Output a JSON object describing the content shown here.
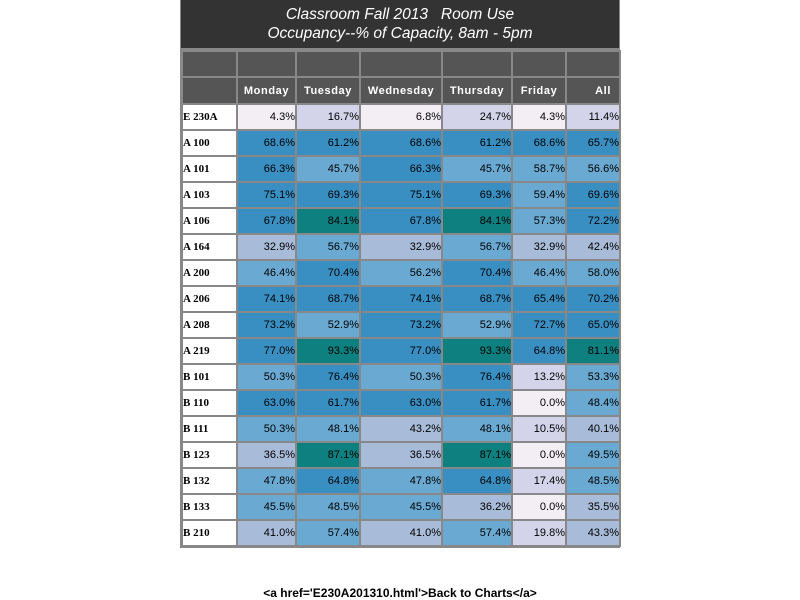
{
  "chart_data": {
    "type": "table",
    "title": "Classroom Fall 2013   Room Use",
    "subtitle": "Occupancy--% of Capacity, 8am - 5pm",
    "columns": [
      "Monday",
      "Tuesday",
      "Wednesday",
      "Thursday",
      "Friday",
      "All"
    ],
    "rows": [
      {
        "label": "E 230A",
        "values": [
          "4.3%",
          "16.7%",
          "6.8%",
          "24.7%",
          "4.3%",
          "11.4%"
        ]
      },
      {
        "label": "A 100",
        "values": [
          "68.6%",
          "61.2%",
          "68.6%",
          "61.2%",
          "68.6%",
          "65.7%"
        ]
      },
      {
        "label": "A 101",
        "values": [
          "66.3%",
          "45.7%",
          "66.3%",
          "45.7%",
          "58.7%",
          "56.6%"
        ]
      },
      {
        "label": "A 103",
        "values": [
          "75.1%",
          "69.3%",
          "75.1%",
          "69.3%",
          "59.4%",
          "69.6%"
        ]
      },
      {
        "label": "A 106",
        "values": [
          "67.8%",
          "84.1%",
          "67.8%",
          "84.1%",
          "57.3%",
          "72.2%"
        ]
      },
      {
        "label": "A 164",
        "values": [
          "32.9%",
          "56.7%",
          "32.9%",
          "56.7%",
          "32.9%",
          "42.4%"
        ]
      },
      {
        "label": "A 200",
        "values": [
          "46.4%",
          "70.4%",
          "56.2%",
          "70.4%",
          "46.4%",
          "58.0%"
        ]
      },
      {
        "label": "A 206",
        "values": [
          "74.1%",
          "68.7%",
          "74.1%",
          "68.7%",
          "65.4%",
          "70.2%"
        ]
      },
      {
        "label": "A 208",
        "values": [
          "73.2%",
          "52.9%",
          "73.2%",
          "52.9%",
          "72.7%",
          "65.0%"
        ]
      },
      {
        "label": "A 219",
        "values": [
          "77.0%",
          "93.3%",
          "77.0%",
          "93.3%",
          "64.8%",
          "81.1%"
        ]
      },
      {
        "label": "B 101",
        "values": [
          "50.3%",
          "76.4%",
          "50.3%",
          "76.4%",
          "13.2%",
          "53.3%"
        ]
      },
      {
        "label": "B 110",
        "values": [
          "63.0%",
          "61.7%",
          "63.0%",
          "61.7%",
          "0.0%",
          "48.4%"
        ]
      },
      {
        "label": "B 111",
        "values": [
          "50.3%",
          "48.1%",
          "43.2%",
          "48.1%",
          "10.5%",
          "40.1%"
        ]
      },
      {
        "label": "B 123",
        "values": [
          "36.5%",
          "87.1%",
          "36.5%",
          "87.1%",
          "0.0%",
          "49.5%"
        ]
      },
      {
        "label": "B 132",
        "values": [
          "47.8%",
          "64.8%",
          "47.8%",
          "64.8%",
          "17.4%",
          "48.5%"
        ]
      },
      {
        "label": "B 133",
        "values": [
          "45.5%",
          "48.5%",
          "45.5%",
          "36.2%",
          "0.0%",
          "35.5%"
        ]
      },
      {
        "label": "B 210",
        "values": [
          "41.0%",
          "57.4%",
          "41.0%",
          "57.4%",
          "19.8%",
          "43.3%"
        ]
      }
    ],
    "color_scale": {
      "very_low": "#f2eef4",
      "low": "#d3d3ea",
      "mid_low": "#a8bcd9",
      "mid": "#6aa9d2",
      "high": "#3a8fc2",
      "very_high": "#0e8080"
    }
  },
  "footer": {
    "link_text": "<a href='E230A201310.html'>Back to Charts</a>"
  }
}
